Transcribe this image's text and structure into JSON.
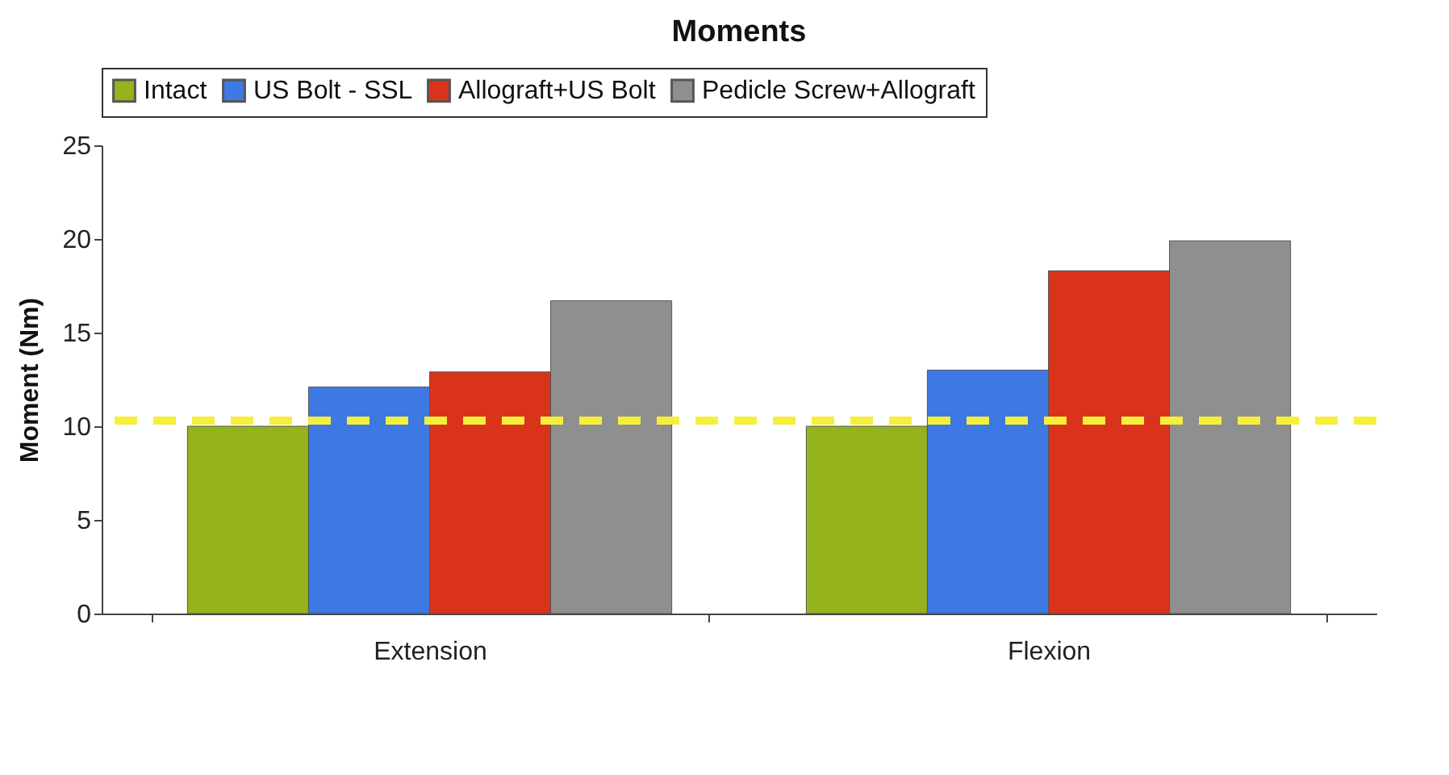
{
  "chart_data": {
    "type": "bar",
    "title": "Moments",
    "ylabel": "Moment (Nm)",
    "categories": [
      "Extension",
      "Flexion"
    ],
    "series": [
      {
        "name": "Intact",
        "color": "#94b31c",
        "values": [
          10,
          10
        ]
      },
      {
        "name": "US Bolt - SSL",
        "color": "#3d78e3",
        "values": [
          12.1,
          13
        ]
      },
      {
        "name": "Allograft+US Bolt",
        "color": "#d9341b",
        "values": [
          12.9,
          18.3
        ]
      },
      {
        "name": "Pedicle Screw+Allograft",
        "color": "#8f8f8f",
        "values": [
          16.7,
          19.9
        ]
      }
    ],
    "ylim": [
      0,
      25
    ],
    "yticks": [
      0,
      5,
      10,
      15,
      20,
      25
    ],
    "grid": false,
    "legend": "top",
    "ref_lines": [
      {
        "axis": "y",
        "value": 10.3,
        "color": "#f5ef3c",
        "line_style": "dashed"
      }
    ]
  }
}
